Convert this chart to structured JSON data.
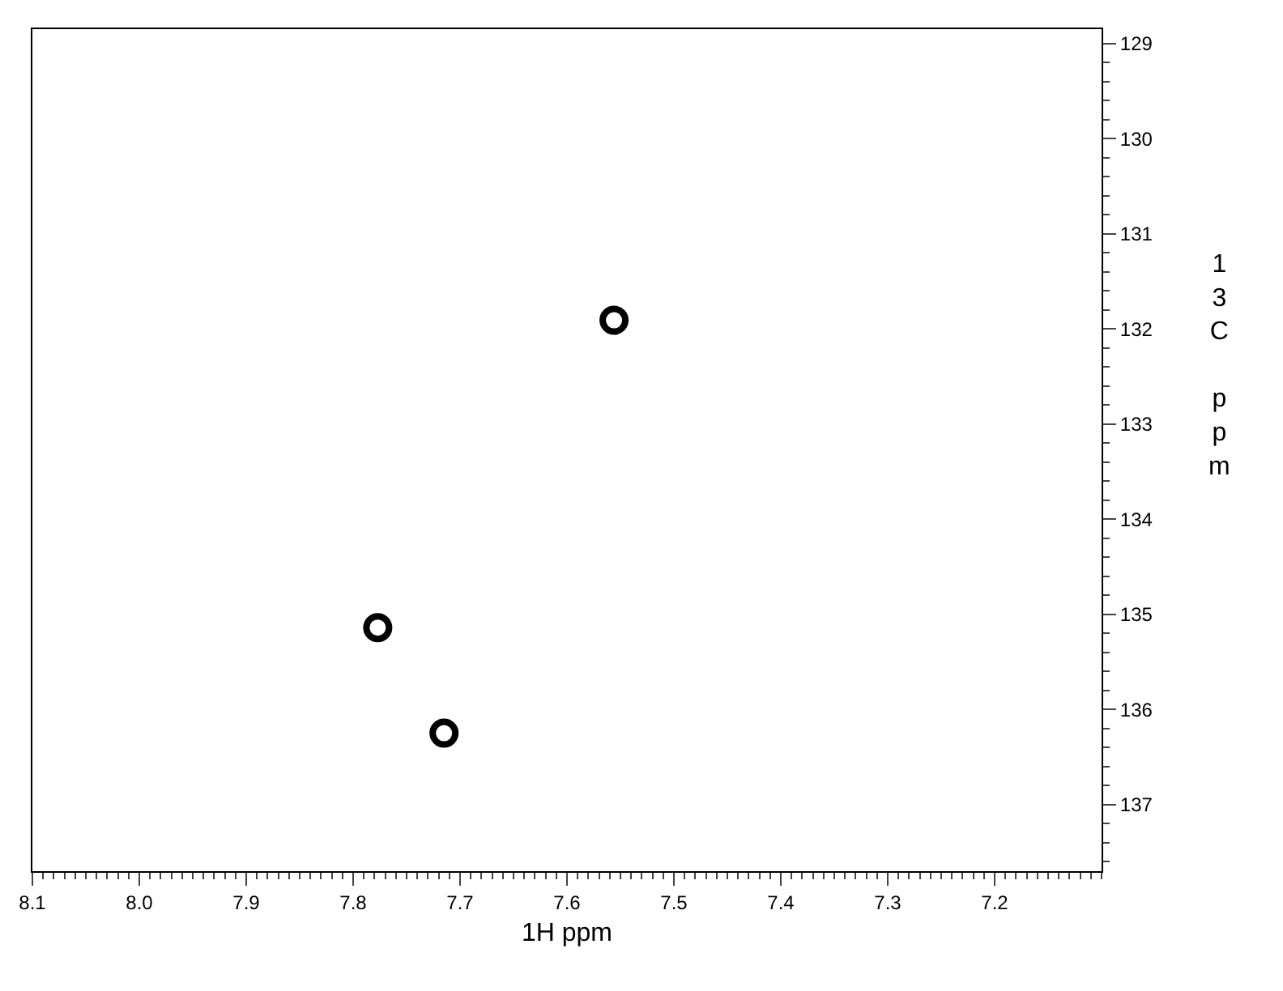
{
  "chart_data": {
    "type": "scatter",
    "xlabel": "1H ppm",
    "ylabel": "13C ppm",
    "x": [
      7.556,
      7.777,
      7.715
    ],
    "series": [
      {
        "color": "#000000",
        "values": [
          131.91,
          135.14,
          136.25
        ]
      }
    ],
    "xlim": [
      8.1,
      7.1
    ],
    "xticks": [
      8.1,
      {
        "value": 8,
        "label": "8.0"
      },
      7.9,
      7.8,
      7.7,
      7.6,
      7.5,
      7.4,
      7.3,
      7.2
    ],
    "ylim": [
      137.7,
      128.85
    ],
    "yticks": [
      129,
      130,
      131,
      132,
      133,
      134,
      135,
      136,
      137
    ],
    "marker": "circle"
  }
}
